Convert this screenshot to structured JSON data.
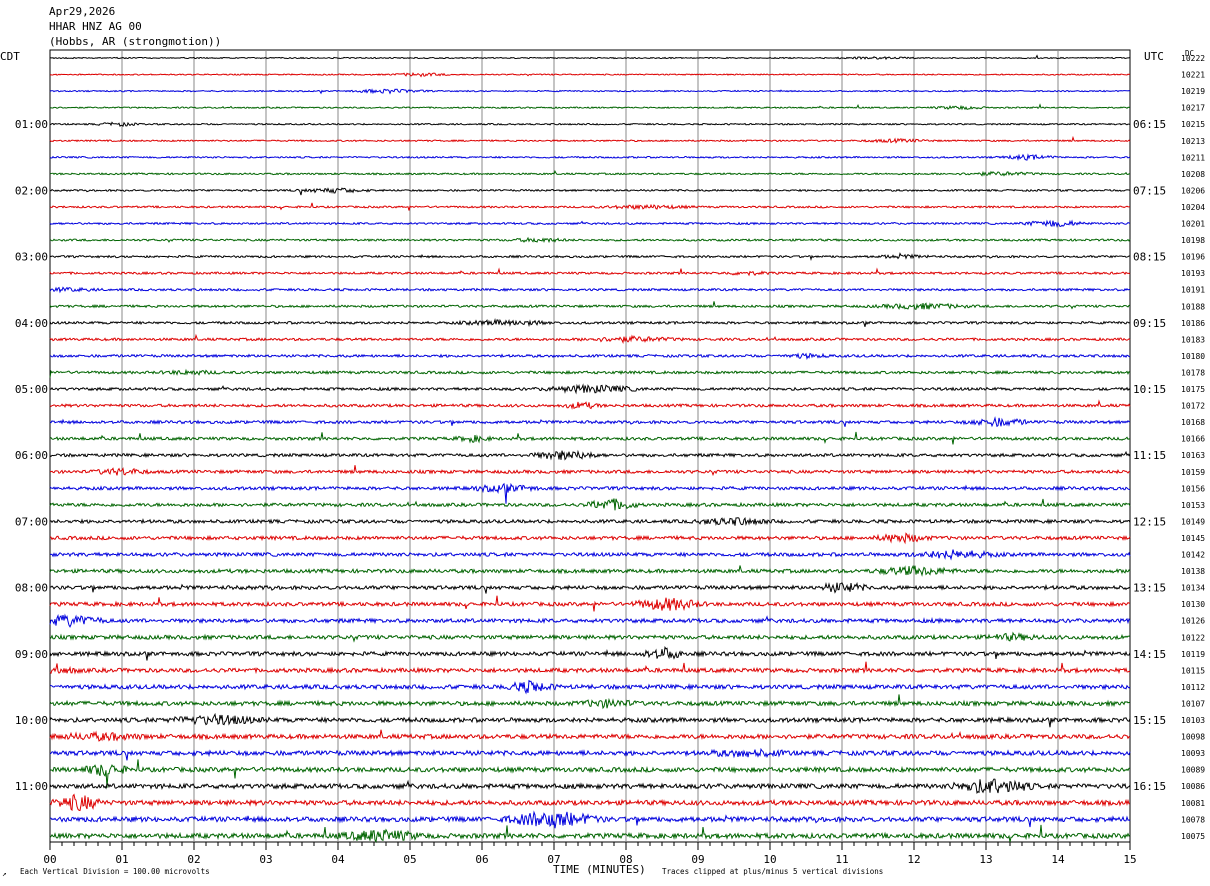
{
  "header": {
    "date": "Apr29,2026",
    "station": "HHAR HNZ AG 00",
    "location": "(Hobbs, AR (strongmotion))"
  },
  "left_label": "CDT",
  "right_label": "UTC",
  "dc_label": "DC",
  "footer": {
    "scale_note": "Each Vertical Division =  100.00 microvolts",
    "clip_note": "Traces clipped at plus/minus 5 vertical divisions",
    "corner_mark": "↗"
  },
  "colors": {
    "trace": [
      "#000000",
      "#dd0000",
      "#0000dd",
      "#006400"
    ],
    "grid": "#888888"
  },
  "chart_data": {
    "type": "line",
    "title": "",
    "xlabel": "TIME (MINUTES)",
    "x_ticks": [
      "00",
      "01",
      "02",
      "03",
      "04",
      "05",
      "06",
      "07",
      "08",
      "09",
      "10",
      "11",
      "12",
      "13",
      "14",
      "15"
    ],
    "xlim": [
      0,
      15
    ],
    "grid": "vertical lines each minute",
    "left_hour_labels": [
      "01:00",
      "02:00",
      "03:00",
      "04:00",
      "05:00",
      "06:00",
      "07:00",
      "08:00",
      "09:00",
      "10:00",
      "11:00"
    ],
    "right_hour_labels": [
      "06:15",
      "07:15",
      "08:15",
      "09:15",
      "10:15",
      "11:15",
      "12:15",
      "13:15",
      "14:15",
      "15:15",
      "16:15"
    ],
    "dc_offsets": [
      10222,
      10221,
      10219,
      10217,
      10215,
      10213,
      10211,
      10208,
      10206,
      10204,
      10201,
      10198,
      10196,
      10193,
      10191,
      10188,
      10186,
      10183,
      10180,
      10178,
      10175,
      10172,
      10168,
      10166,
      10163,
      10159,
      10156,
      10153,
      10149,
      10145,
      10142,
      10138,
      10134,
      10130,
      10126,
      10122,
      10119,
      10115,
      10112,
      10107,
      10103,
      10098,
      10093,
      10089,
      10086,
      10081,
      10078,
      10075
    ],
    "traces_per_hour": 4,
    "minutes_per_trace": 15,
    "trace_count": 48
  }
}
